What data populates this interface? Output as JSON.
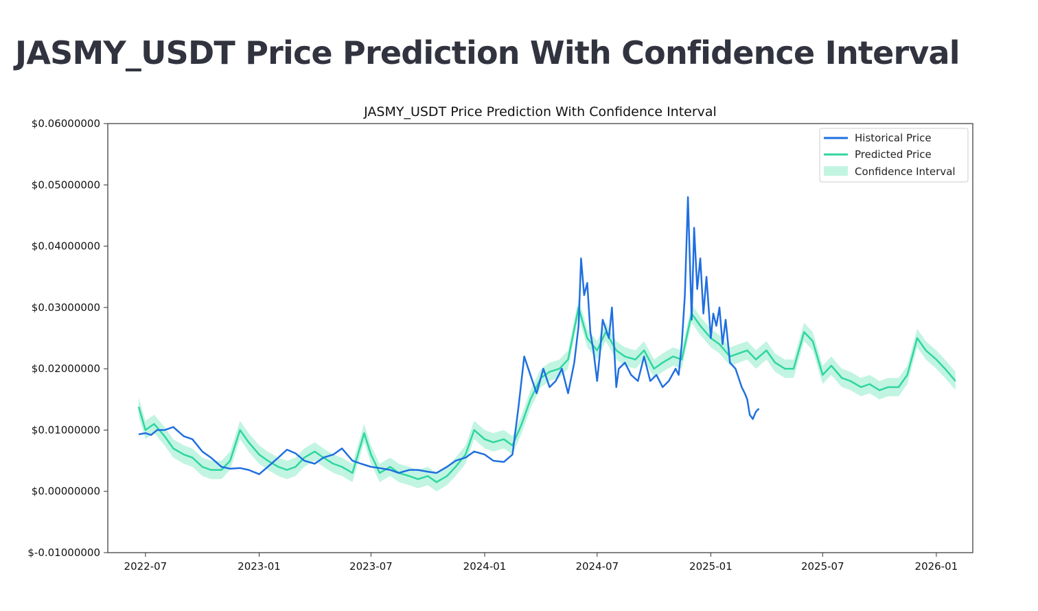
{
  "page": {
    "title": "JASMY_USDT Price Prediction With Confidence Interval"
  },
  "chart_data": {
    "type": "line",
    "title": "JASMY_USDT Price Prediction With Confidence Interval",
    "xlabel": "",
    "ylabel": "",
    "x_range": [
      "2022-05-01",
      "2026-03-01"
    ],
    "ylim": [
      -0.01,
      0.06
    ],
    "y_ticks": [
      -0.01,
      0.0,
      0.01,
      0.02,
      0.03,
      0.04,
      0.05,
      0.06
    ],
    "y_tick_labels": [
      "$-0.01000000",
      "$0.00000000",
      "$0.01000000",
      "$0.02000000",
      "$0.03000000",
      "$0.04000000",
      "$0.05000000",
      "$0.06000000"
    ],
    "x_ticks": [
      "2022-07-01",
      "2023-01-01",
      "2023-07-01",
      "2024-01-01",
      "2024-07-01",
      "2025-01-01",
      "2025-07-01",
      "2026-01-01"
    ],
    "x_tick_labels": [
      "2022-07",
      "2023-01",
      "2023-07",
      "2024-01",
      "2024-07",
      "2025-01",
      "2025-07",
      "2026-01"
    ],
    "grid": false,
    "legend_position": "top-right",
    "colors": {
      "historical": "#1f6fe0",
      "predicted": "#2ed6a0",
      "confidence": "#a8f0d6"
    },
    "series": [
      {
        "name": "Historical Price",
        "x": [
          "2022-06-20",
          "2022-07-01",
          "2022-07-10",
          "2022-07-20",
          "2022-08-01",
          "2022-08-15",
          "2022-09-01",
          "2022-09-15",
          "2022-10-01",
          "2022-10-15",
          "2022-11-01",
          "2022-11-15",
          "2022-12-01",
          "2022-12-15",
          "2023-01-01",
          "2023-01-15",
          "2023-02-01",
          "2023-02-15",
          "2023-03-01",
          "2023-03-15",
          "2023-04-01",
          "2023-04-15",
          "2023-05-01",
          "2023-05-15",
          "2023-06-01",
          "2023-06-15",
          "2023-07-01",
          "2023-07-15",
          "2023-08-01",
          "2023-08-15",
          "2023-09-01",
          "2023-09-15",
          "2023-10-01",
          "2023-10-15",
          "2023-11-01",
          "2023-11-15",
          "2023-12-01",
          "2023-12-15",
          "2024-01-01",
          "2024-01-15",
          "2024-02-01",
          "2024-02-15",
          "2024-02-25",
          "2024-03-05",
          "2024-03-15",
          "2024-03-25",
          "2024-04-05",
          "2024-04-15",
          "2024-04-25",
          "2024-05-05",
          "2024-05-15",
          "2024-05-25",
          "2024-06-01",
          "2024-06-05",
          "2024-06-10",
          "2024-06-15",
          "2024-06-20",
          "2024-06-25",
          "2024-07-01",
          "2024-07-05",
          "2024-07-10",
          "2024-07-20",
          "2024-07-25",
          "2024-08-01",
          "2024-08-05",
          "2024-08-15",
          "2024-08-25",
          "2024-09-05",
          "2024-09-15",
          "2024-09-25",
          "2024-10-05",
          "2024-10-15",
          "2024-10-25",
          "2024-11-05",
          "2024-11-10",
          "2024-11-15",
          "2024-11-20",
          "2024-11-25",
          "2024-12-01",
          "2024-12-05",
          "2024-12-10",
          "2024-12-15",
          "2024-12-20",
          "2024-12-25",
          "2025-01-01",
          "2025-01-05",
          "2025-01-10",
          "2025-01-15",
          "2025-01-20",
          "2025-01-25",
          "2025-02-01",
          "2025-02-10",
          "2025-02-20",
          "2025-02-25",
          "2025-03-01",
          "2025-03-05",
          "2025-03-10",
          "2025-03-15",
          "2025-03-20"
        ],
        "values": [
          0.0093,
          0.0095,
          0.0092,
          0.01,
          0.01,
          0.0105,
          0.009,
          0.0085,
          0.0065,
          0.0055,
          0.004,
          0.0037,
          0.0038,
          0.0035,
          0.0028,
          0.004,
          0.0055,
          0.0068,
          0.0062,
          0.005,
          0.0045,
          0.0055,
          0.006,
          0.007,
          0.005,
          0.0045,
          0.004,
          0.0038,
          0.0035,
          0.003,
          0.0035,
          0.0035,
          0.0032,
          0.003,
          0.004,
          0.005,
          0.0055,
          0.0065,
          0.006,
          0.005,
          0.0048,
          0.006,
          0.014,
          0.022,
          0.019,
          0.016,
          0.02,
          0.017,
          0.018,
          0.02,
          0.016,
          0.021,
          0.027,
          0.038,
          0.032,
          0.034,
          0.026,
          0.023,
          0.018,
          0.022,
          0.028,
          0.025,
          0.03,
          0.017,
          0.02,
          0.021,
          0.019,
          0.018,
          0.022,
          0.018,
          0.019,
          0.017,
          0.018,
          0.02,
          0.019,
          0.024,
          0.032,
          0.048,
          0.028,
          0.043,
          0.033,
          0.038,
          0.029,
          0.035,
          0.025,
          0.029,
          0.027,
          0.03,
          0.024,
          0.028,
          0.021,
          0.02,
          0.017,
          0.016,
          0.015,
          0.0125,
          0.0118,
          0.013,
          0.0135
        ]
      },
      {
        "name": "Predicted Price",
        "x": [
          "2022-06-20",
          "2022-07-01",
          "2022-07-15",
          "2022-08-01",
          "2022-08-15",
          "2022-09-01",
          "2022-09-15",
          "2022-10-01",
          "2022-10-15",
          "2022-11-01",
          "2022-11-15",
          "2022-12-01",
          "2022-12-15",
          "2023-01-01",
          "2023-01-15",
          "2023-02-01",
          "2023-02-15",
          "2023-03-01",
          "2023-03-15",
          "2023-04-01",
          "2023-04-15",
          "2023-05-01",
          "2023-05-15",
          "2023-06-01",
          "2023-06-20",
          "2023-07-01",
          "2023-07-15",
          "2023-08-01",
          "2023-08-15",
          "2023-09-01",
          "2023-09-15",
          "2023-10-01",
          "2023-10-15",
          "2023-11-01",
          "2023-11-15",
          "2023-12-01",
          "2023-12-15",
          "2024-01-01",
          "2024-01-15",
          "2024-02-01",
          "2024-02-15",
          "2024-03-01",
          "2024-03-15",
          "2024-04-01",
          "2024-04-15",
          "2024-05-01",
          "2024-05-15",
          "2024-06-01",
          "2024-06-15",
          "2024-07-01",
          "2024-07-15",
          "2024-08-01",
          "2024-08-15",
          "2024-09-01",
          "2024-09-15",
          "2024-10-01",
          "2024-10-15",
          "2024-11-01",
          "2024-11-15",
          "2024-12-01",
          "2024-12-15",
          "2025-01-01",
          "2025-01-15",
          "2025-02-01",
          "2025-02-15",
          "2025-03-01",
          "2025-03-15",
          "2025-04-01",
          "2025-04-15",
          "2025-05-01",
          "2025-05-15",
          "2025-06-01",
          "2025-06-15",
          "2025-07-01",
          "2025-07-15",
          "2025-08-01",
          "2025-08-15",
          "2025-09-01",
          "2025-09-15",
          "2025-10-01",
          "2025-10-15",
          "2025-11-01",
          "2025-11-15",
          "2025-12-01",
          "2025-12-15",
          "2026-01-01",
          "2026-01-15",
          "2026-02-01"
        ],
        "values": [
          0.0138,
          0.01,
          0.011,
          0.009,
          0.007,
          0.006,
          0.0055,
          0.004,
          0.0035,
          0.0035,
          0.005,
          0.01,
          0.008,
          0.006,
          0.005,
          0.004,
          0.0035,
          0.004,
          0.0055,
          0.0065,
          0.0055,
          0.0045,
          0.004,
          0.003,
          0.0095,
          0.006,
          0.003,
          0.004,
          0.003,
          0.0025,
          0.002,
          0.0025,
          0.0015,
          0.0025,
          0.004,
          0.006,
          0.01,
          0.0085,
          0.008,
          0.0085,
          0.0075,
          0.011,
          0.015,
          0.0185,
          0.0195,
          0.02,
          0.0215,
          0.03,
          0.025,
          0.023,
          0.026,
          0.023,
          0.022,
          0.0215,
          0.023,
          0.02,
          0.021,
          0.022,
          0.0215,
          0.029,
          0.027,
          0.025,
          0.024,
          0.022,
          0.0225,
          0.023,
          0.0215,
          0.023,
          0.021,
          0.02,
          0.02,
          0.026,
          0.0245,
          0.019,
          0.0205,
          0.0185,
          0.018,
          0.017,
          0.0175,
          0.0165,
          0.017,
          0.017,
          0.019,
          0.025,
          0.023,
          0.0215,
          0.02,
          0.018
        ]
      }
    ],
    "confidence_interval": {
      "name": "Confidence Interval",
      "half_width": 0.0015
    }
  }
}
